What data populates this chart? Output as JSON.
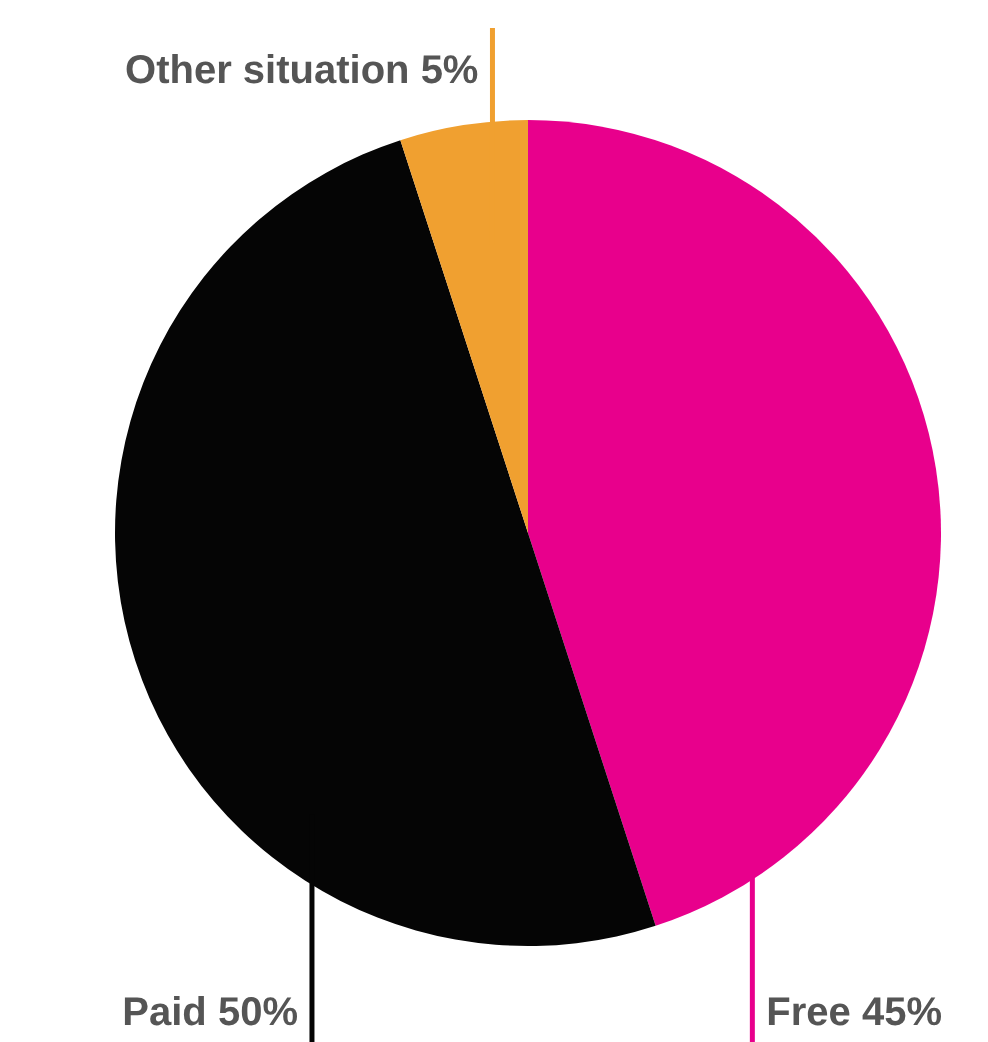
{
  "chart_data": {
    "type": "pie",
    "categories": [
      "Free",
      "Paid",
      "Other situation"
    ],
    "values": [
      45,
      50,
      5
    ],
    "colors": [
      "#e8008c",
      "#050505",
      "#f0a030"
    ],
    "value_labels": [
      "45%",
      "50%",
      "5%"
    ],
    "legend": false
  }
}
